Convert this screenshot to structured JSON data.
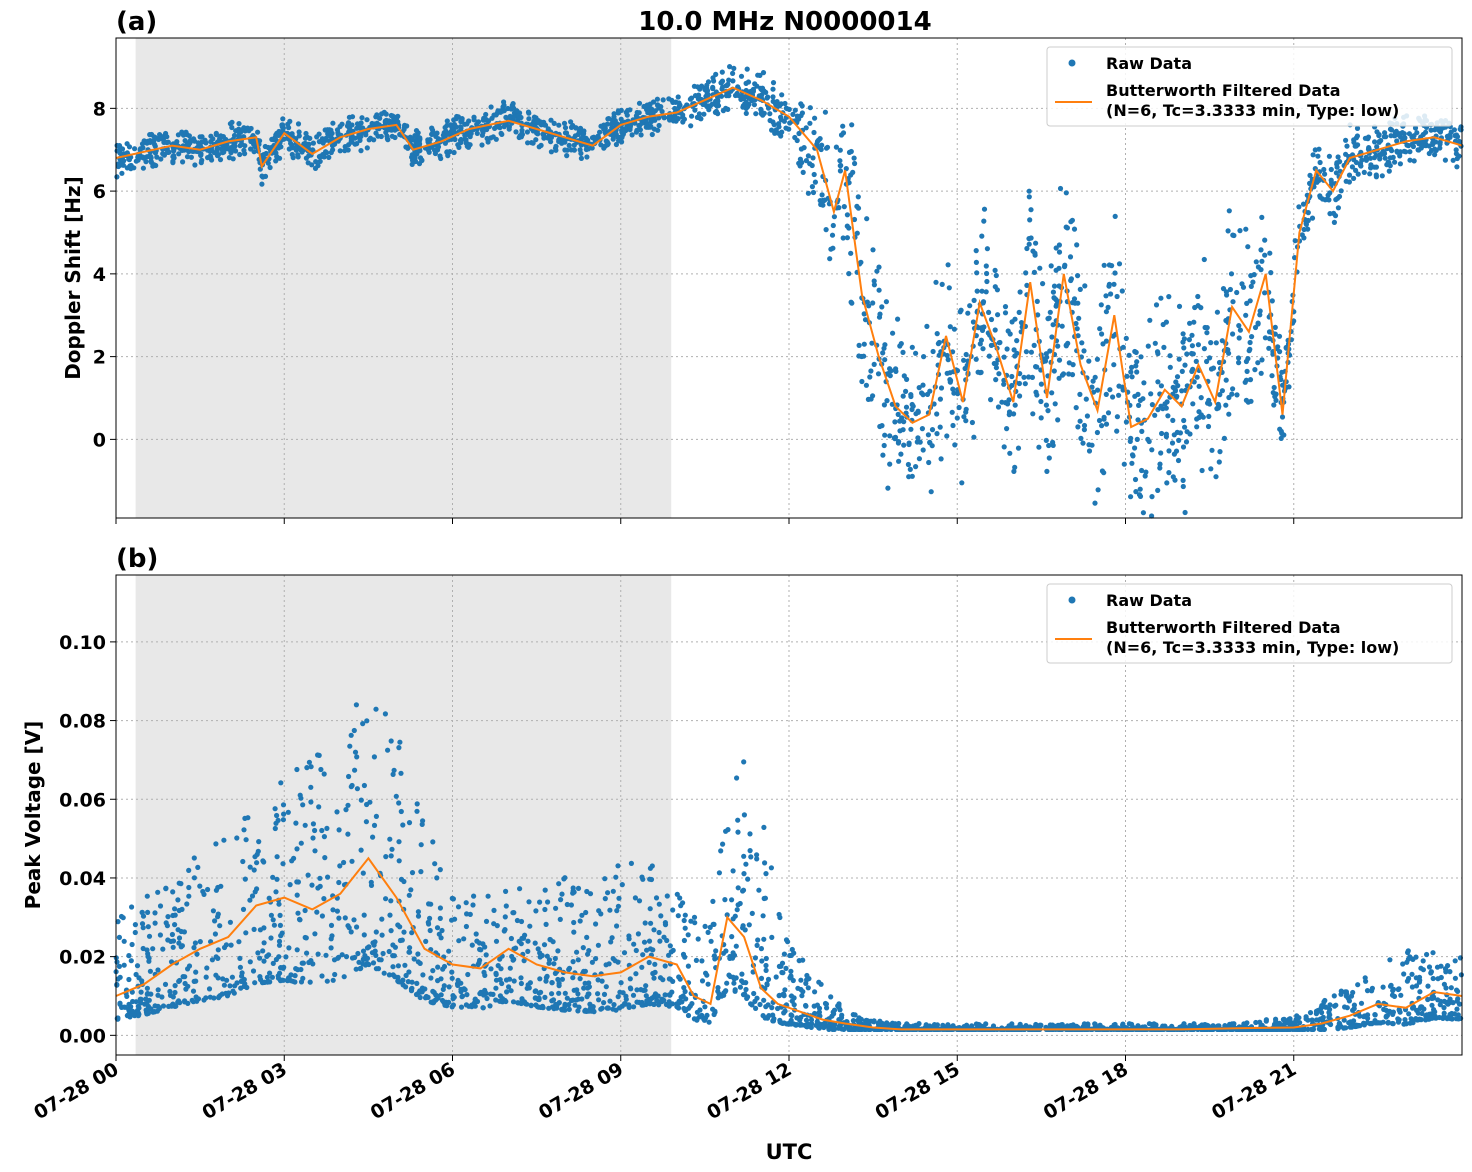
{
  "figure": {
    "title": "10.0 MHz N0000014",
    "xlabel": "UTC"
  },
  "colors": {
    "raw": "#1f77b4",
    "filtered": "#ff7f0e",
    "shade": "#e8e8e8",
    "grid": "#b0b0b0"
  },
  "legend": {
    "raw": "Raw Data",
    "filtered_line1": "Butterworth Filtered Data",
    "filtered_line2": "(N=6, Tc=3.3333 min, Type: low)"
  },
  "x_axis": {
    "range_hours": [
      0,
      24
    ],
    "tick_hours": [
      0,
      3,
      6,
      9,
      12,
      15,
      18,
      21
    ],
    "tick_labels": [
      "07-28 00",
      "07-28 03",
      "07-28 06",
      "07-28 09",
      "07-28 12",
      "07-28 15",
      "07-28 18",
      "07-28 21"
    ]
  },
  "chart_data": [
    {
      "panel": "(a)",
      "type": "scatter",
      "ylabel": "Doppler Shift [Hz]",
      "xlim_hours": [
        0,
        24
      ],
      "ylim": [
        -1.9,
        9.7
      ],
      "yticks": [
        0,
        2,
        4,
        6,
        8
      ],
      "ytick_labels": [
        "0",
        "2",
        "4",
        "6",
        "8"
      ],
      "grid": true,
      "legend_position": "top-right",
      "shaded_interval_hours": [
        0.35,
        9.9
      ],
      "series": [
        {
          "name": "Raw Data",
          "kind": "scatter"
        },
        {
          "name": "Butterworth Filtered Data (N=6, Tc=3.3333 min, Type: low)",
          "kind": "line"
        }
      ],
      "filtered_curve": [
        [
          0.0,
          6.8
        ],
        [
          0.5,
          6.95
        ],
        [
          1.0,
          7.1
        ],
        [
          1.5,
          7.0
        ],
        [
          2.0,
          7.2
        ],
        [
          2.5,
          7.3
        ],
        [
          2.6,
          6.6
        ],
        [
          3.0,
          7.4
        ],
        [
          3.5,
          6.9
        ],
        [
          4.0,
          7.3
        ],
        [
          4.5,
          7.5
        ],
        [
          5.0,
          7.6
        ],
        [
          5.3,
          7.0
        ],
        [
          5.8,
          7.2
        ],
        [
          6.3,
          7.5
        ],
        [
          7.0,
          7.7
        ],
        [
          7.5,
          7.5
        ],
        [
          8.0,
          7.3
        ],
        [
          8.5,
          7.1
        ],
        [
          9.0,
          7.6
        ],
        [
          9.5,
          7.8
        ],
        [
          10.0,
          7.9
        ],
        [
          10.5,
          8.2
        ],
        [
          11.0,
          8.5
        ],
        [
          11.5,
          8.2
        ],
        [
          12.0,
          7.8
        ],
        [
          12.5,
          7.0
        ],
        [
          12.8,
          5.5
        ],
        [
          13.0,
          6.5
        ],
        [
          13.3,
          3.5
        ],
        [
          13.6,
          2.0
        ],
        [
          13.9,
          0.8
        ],
        [
          14.2,
          0.4
        ],
        [
          14.5,
          0.6
        ],
        [
          14.8,
          2.5
        ],
        [
          15.1,
          0.9
        ],
        [
          15.4,
          3.3
        ],
        [
          15.7,
          2.2
        ],
        [
          16.0,
          0.9
        ],
        [
          16.3,
          3.8
        ],
        [
          16.6,
          1.0
        ],
        [
          16.9,
          4.0
        ],
        [
          17.2,
          1.8
        ],
        [
          17.5,
          0.7
        ],
        [
          17.8,
          3.0
        ],
        [
          18.1,
          0.3
        ],
        [
          18.4,
          0.5
        ],
        [
          18.7,
          1.2
        ],
        [
          19.0,
          0.8
        ],
        [
          19.3,
          1.8
        ],
        [
          19.6,
          0.9
        ],
        [
          19.9,
          3.2
        ],
        [
          20.2,
          2.6
        ],
        [
          20.5,
          4.0
        ],
        [
          20.8,
          0.6
        ],
        [
          21.1,
          5.0
        ],
        [
          21.4,
          6.5
        ],
        [
          21.7,
          6.0
        ],
        [
          22.0,
          6.8
        ],
        [
          22.5,
          7.0
        ],
        [
          23.0,
          7.2
        ],
        [
          23.5,
          7.3
        ],
        [
          24.0,
          7.1
        ]
      ],
      "scatter_spread_hz": [
        [
          0,
          0.5
        ],
        [
          10,
          0.5
        ],
        [
          12,
          0.8
        ],
        [
          13,
          2.5
        ],
        [
          18,
          3.0
        ],
        [
          20,
          3.0
        ],
        [
          21,
          1.0
        ],
        [
          24,
          0.6
        ]
      ]
    },
    {
      "panel": "(b)",
      "type": "scatter",
      "ylabel": "Peak Voltage [V]",
      "xlim_hours": [
        0,
        24
      ],
      "ylim": [
        -0.005,
        0.117
      ],
      "yticks": [
        0.0,
        0.02,
        0.04,
        0.06,
        0.08,
        0.1
      ],
      "ytick_labels": [
        "0.00",
        "0.02",
        "0.04",
        "0.06",
        "0.08",
        "0.10"
      ],
      "grid": true,
      "legend_position": "top-right",
      "shaded_interval_hours": [
        0.35,
        9.9
      ],
      "series": [
        {
          "name": "Raw Data",
          "kind": "scatter"
        },
        {
          "name": "Butterworth Filtered Data (N=6, Tc=3.3333 min, Type: low)",
          "kind": "line"
        }
      ],
      "filtered_curve": [
        [
          0.0,
          0.01
        ],
        [
          0.5,
          0.013
        ],
        [
          1.0,
          0.018
        ],
        [
          1.5,
          0.022
        ],
        [
          2.0,
          0.025
        ],
        [
          2.5,
          0.033
        ],
        [
          3.0,
          0.035
        ],
        [
          3.5,
          0.032
        ],
        [
          4.0,
          0.036
        ],
        [
          4.5,
          0.045
        ],
        [
          5.0,
          0.035
        ],
        [
          5.5,
          0.022
        ],
        [
          6.0,
          0.018
        ],
        [
          6.5,
          0.017
        ],
        [
          7.0,
          0.022
        ],
        [
          7.5,
          0.018
        ],
        [
          8.0,
          0.016
        ],
        [
          8.5,
          0.015
        ],
        [
          9.0,
          0.016
        ],
        [
          9.5,
          0.02
        ],
        [
          10.0,
          0.018
        ],
        [
          10.3,
          0.01
        ],
        [
          10.6,
          0.008
        ],
        [
          10.9,
          0.03
        ],
        [
          11.2,
          0.025
        ],
        [
          11.5,
          0.012
        ],
        [
          11.8,
          0.008
        ],
        [
          12.2,
          0.006
        ],
        [
          12.6,
          0.004
        ],
        [
          13.0,
          0.003
        ],
        [
          13.5,
          0.002
        ],
        [
          14.0,
          0.0015
        ],
        [
          15.0,
          0.0015
        ],
        [
          16.0,
          0.0015
        ],
        [
          17.0,
          0.0015
        ],
        [
          18.0,
          0.0015
        ],
        [
          19.0,
          0.0015
        ],
        [
          20.0,
          0.0018
        ],
        [
          21.0,
          0.002
        ],
        [
          21.5,
          0.003
        ],
        [
          22.0,
          0.005
        ],
        [
          22.5,
          0.008
        ],
        [
          23.0,
          0.007
        ],
        [
          23.5,
          0.011
        ],
        [
          24.0,
          0.01
        ]
      ],
      "scatter_ceiling_v": [
        [
          0,
          0.03
        ],
        [
          2.6,
          0.06
        ],
        [
          4.7,
          0.09
        ],
        [
          6,
          0.035
        ],
        [
          9.5,
          0.045
        ],
        [
          10.5,
          0.03
        ],
        [
          11.2,
          0.075
        ],
        [
          12,
          0.025
        ],
        [
          13,
          0.006
        ],
        [
          14,
          0.003
        ],
        [
          20,
          0.003
        ],
        [
          21,
          0.005
        ],
        [
          22,
          0.013
        ],
        [
          23,
          0.022
        ],
        [
          24,
          0.02
        ]
      ]
    }
  ]
}
